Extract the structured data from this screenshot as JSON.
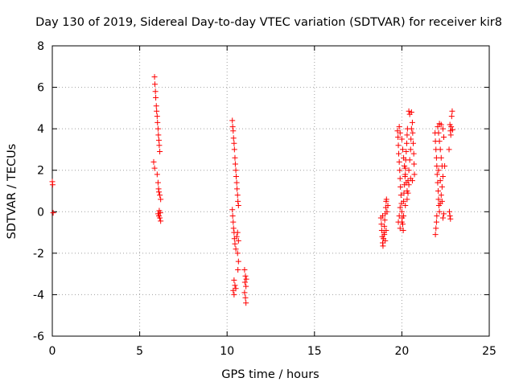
{
  "chart_data": {
    "type": "scatter",
    "title": "Day 130 of 2019, Sidereal Day-to-day VTEC variation (SDTVAR) for receiver kir8",
    "xlabel": "GPS time / hours",
    "ylabel": "SDTVAR / TECUs",
    "xlim": [
      0,
      25
    ],
    "ylim": [
      -6,
      8
    ],
    "xticks": [
      "0",
      "5",
      "10",
      "15",
      "20",
      "25"
    ],
    "yticks": [
      "-6",
      "-4",
      "-2",
      "0",
      "2",
      "4",
      "6",
      "8"
    ],
    "grid": true,
    "marker": "+",
    "marker_color": "#ff0000",
    "series": [
      {
        "name": "kir8",
        "points": [
          [
            0.0,
            1.45
          ],
          [
            0.02,
            1.3
          ],
          [
            0.05,
            -0.05
          ],
          [
            5.85,
            6.5
          ],
          [
            5.87,
            6.15
          ],
          [
            5.9,
            5.8
          ],
          [
            5.92,
            5.5
          ],
          [
            5.95,
            5.1
          ],
          [
            5.97,
            4.85
          ],
          [
            6.0,
            4.6
          ],
          [
            6.02,
            4.3
          ],
          [
            6.05,
            4.0
          ],
          [
            6.07,
            3.7
          ],
          [
            6.1,
            3.45
          ],
          [
            6.12,
            3.2
          ],
          [
            6.15,
            2.9
          ],
          [
            5.8,
            2.4
          ],
          [
            5.85,
            2.1
          ],
          [
            6.0,
            1.8
          ],
          [
            6.05,
            1.4
          ],
          [
            6.08,
            1.1
          ],
          [
            6.1,
            0.95
          ],
          [
            6.15,
            0.8
          ],
          [
            6.2,
            0.6
          ],
          [
            6.05,
            -0.1
          ],
          [
            6.1,
            -0.2
          ],
          [
            6.15,
            -0.3
          ],
          [
            6.2,
            -0.45
          ],
          [
            6.12,
            0.05
          ],
          [
            6.18,
            -0.05
          ],
          [
            10.3,
            4.4
          ],
          [
            10.32,
            4.1
          ],
          [
            10.35,
            3.9
          ],
          [
            10.37,
            3.55
          ],
          [
            10.4,
            3.3
          ],
          [
            10.42,
            3.0
          ],
          [
            10.45,
            2.6
          ],
          [
            10.47,
            2.3
          ],
          [
            10.5,
            2.0
          ],
          [
            10.52,
            1.7
          ],
          [
            10.55,
            1.4
          ],
          [
            10.57,
            1.1
          ],
          [
            10.6,
            0.8
          ],
          [
            10.62,
            0.5
          ],
          [
            10.65,
            0.3
          ],
          [
            10.3,
            0.1
          ],
          [
            10.32,
            -0.2
          ],
          [
            10.35,
            -0.5
          ],
          [
            10.37,
            -0.8
          ],
          [
            10.4,
            -1.0
          ],
          [
            10.42,
            -1.3
          ],
          [
            10.45,
            -1.55
          ],
          [
            10.5,
            -1.8
          ],
          [
            10.55,
            -1.2
          ],
          [
            10.6,
            -1.0
          ],
          [
            10.65,
            -1.4
          ],
          [
            10.6,
            -2.0
          ],
          [
            10.65,
            -2.4
          ],
          [
            10.62,
            -2.8
          ],
          [
            10.4,
            -3.3
          ],
          [
            10.45,
            -3.55
          ],
          [
            10.35,
            -3.8
          ],
          [
            10.4,
            -4.0
          ],
          [
            10.5,
            -3.7
          ],
          [
            11.0,
            -2.8
          ],
          [
            11.05,
            -3.1
          ],
          [
            11.02,
            -3.4
          ],
          [
            11.08,
            -3.6
          ],
          [
            11.0,
            -3.9
          ],
          [
            11.05,
            -4.15
          ],
          [
            11.08,
            -4.4
          ],
          [
            11.1,
            -3.25
          ],
          [
            18.8,
            -0.3
          ],
          [
            18.83,
            -0.6
          ],
          [
            18.85,
            -0.9
          ],
          [
            18.88,
            -1.2
          ],
          [
            18.9,
            -1.5
          ],
          [
            18.92,
            -1.65
          ],
          [
            18.95,
            -1.3
          ],
          [
            18.98,
            -1.0
          ],
          [
            19.0,
            -0.7
          ],
          [
            19.02,
            -0.4
          ],
          [
            19.05,
            -0.1
          ],
          [
            19.08,
            0.2
          ],
          [
            19.1,
            0.5
          ],
          [
            19.12,
            0.6
          ],
          [
            18.9,
            -0.2
          ],
          [
            19.0,
            -1.1
          ],
          [
            19.05,
            -1.4
          ],
          [
            19.1,
            -0.9
          ],
          [
            19.15,
            0.0
          ],
          [
            19.2,
            0.3
          ],
          [
            19.75,
            3.9
          ],
          [
            19.78,
            3.6
          ],
          [
            19.8,
            3.2
          ],
          [
            19.82,
            2.8
          ],
          [
            19.85,
            2.4
          ],
          [
            19.88,
            2.0
          ],
          [
            19.9,
            1.6
          ],
          [
            19.92,
            1.2
          ],
          [
            19.95,
            0.8
          ],
          [
            19.98,
            0.4
          ],
          [
            20.0,
            0.0
          ],
          [
            20.02,
            -0.3
          ],
          [
            20.05,
            -0.6
          ],
          [
            20.08,
            -0.9
          ],
          [
            19.8,
            -0.5
          ],
          [
            19.85,
            -0.2
          ],
          [
            19.9,
            0.2
          ],
          [
            20.1,
            0.5
          ],
          [
            20.12,
            0.9
          ],
          [
            20.15,
            1.3
          ],
          [
            20.18,
            1.7
          ],
          [
            20.2,
            2.1
          ],
          [
            20.22,
            2.5
          ],
          [
            20.25,
            2.9
          ],
          [
            20.28,
            3.3
          ],
          [
            20.3,
            3.7
          ],
          [
            20.32,
            4.0
          ],
          [
            19.85,
            4.1
          ],
          [
            19.9,
            3.8
          ],
          [
            20.0,
            3.5
          ],
          [
            20.05,
            3.0
          ],
          [
            20.1,
            2.6
          ],
          [
            20.15,
            2.2
          ],
          [
            20.2,
            1.8
          ],
          [
            20.25,
            1.4
          ],
          [
            20.3,
            1.0
          ],
          [
            20.35,
            1.5
          ],
          [
            20.4,
            2.0
          ],
          [
            20.45,
            2.5
          ],
          [
            20.5,
            3.0
          ],
          [
            20.52,
            3.5
          ],
          [
            20.55,
            4.0
          ],
          [
            20.4,
            4.85
          ],
          [
            20.45,
            4.7
          ],
          [
            20.55,
            4.8
          ],
          [
            20.6,
            4.3
          ],
          [
            20.62,
            3.8
          ],
          [
            20.65,
            3.3
          ],
          [
            20.68,
            2.8
          ],
          [
            20.7,
            2.3
          ],
          [
            20.72,
            1.8
          ],
          [
            20.6,
            1.5
          ],
          [
            20.5,
            1.6
          ],
          [
            20.4,
            1.3
          ],
          [
            20.35,
            0.9
          ],
          [
            20.3,
            0.6
          ],
          [
            20.2,
            0.3
          ],
          [
            20.1,
            -0.2
          ],
          [
            20.0,
            -0.5
          ],
          [
            19.9,
            -0.8
          ],
          [
            21.9,
            3.8
          ],
          [
            21.92,
            3.4
          ],
          [
            21.95,
            3.0
          ],
          [
            21.98,
            2.6
          ],
          [
            22.0,
            2.2
          ],
          [
            22.02,
            1.8
          ],
          [
            22.05,
            1.4
          ],
          [
            22.08,
            1.0
          ],
          [
            22.1,
            0.6
          ],
          [
            22.12,
            0.3
          ],
          [
            22.0,
            -0.2
          ],
          [
            21.98,
            -0.5
          ],
          [
            21.95,
            -0.8
          ],
          [
            21.92,
            -1.1
          ],
          [
            22.15,
            0.0
          ],
          [
            22.2,
            0.4
          ],
          [
            22.25,
            0.8
          ],
          [
            22.3,
            1.2
          ],
          [
            22.35,
            1.7
          ],
          [
            22.3,
            2.2
          ],
          [
            22.25,
            2.6
          ],
          [
            22.2,
            3.0
          ],
          [
            22.15,
            3.4
          ],
          [
            22.1,
            3.8
          ],
          [
            22.05,
            4.1
          ],
          [
            22.15,
            4.25
          ],
          [
            22.25,
            4.2
          ],
          [
            22.35,
            4.0
          ],
          [
            22.4,
            3.6
          ],
          [
            22.45,
            2.2
          ],
          [
            22.4,
            -0.1
          ],
          [
            22.35,
            -0.3
          ],
          [
            22.3,
            0.5
          ],
          [
            22.2,
            1.5
          ],
          [
            22.1,
            2.0
          ],
          [
            22.75,
            4.2
          ],
          [
            22.78,
            3.9
          ],
          [
            22.8,
            3.7
          ],
          [
            22.82,
            4.1
          ],
          [
            22.85,
            4.6
          ],
          [
            22.88,
            4.85
          ],
          [
            22.9,
            3.95
          ],
          [
            22.7,
            3.0
          ],
          [
            22.72,
            0.0
          ],
          [
            22.75,
            -0.2
          ],
          [
            22.78,
            -0.35
          ]
        ]
      }
    ]
  }
}
